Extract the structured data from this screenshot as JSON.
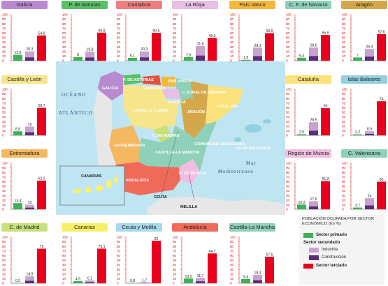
{
  "chart_data": {
    "type": "bar",
    "yaxis": {
      "ticks": [
        "100",
        "90",
        "80",
        "70",
        "60",
        "50",
        "40",
        "30",
        "20",
        "10",
        "0"
      ],
      "ylim": [
        0,
        100
      ]
    },
    "series": [
      {
        "name": "Sector primario",
        "color": "#3fb05a"
      },
      {
        "name": "Industria",
        "color": "#c9a3cf"
      },
      {
        "name": "Construcción",
        "color": "#5b2d7a"
      },
      {
        "name": "Sector terciario",
        "color": "#e8001c"
      }
    ],
    "panels": [
      {
        "region": "Galicia",
        "title_color": "#b98ad0",
        "values": [
          12.8,
          20.3,
          54.8
        ],
        "labels": [
          "12,8",
          "20,3",
          "54,8"
        ]
      },
      {
        "region": "P. de Asturias",
        "title_color": "#5bbf6a",
        "values": [
          8,
          19.8,
          60.9
        ],
        "labels": [
          "8",
          "19,8",
          "60,9"
        ]
      },
      {
        "region": "Cantabria",
        "title_color": "#f07e7e",
        "values": [
          6.1,
          20.3,
          60.5
        ],
        "labels": [
          "6,1",
          "20,3",
          "60,5"
        ]
      },
      {
        "region": "La Rioja",
        "title_color": "#e8bde6",
        "values": [
          7.9,
          31.8,
          49.6
        ],
        "labels": [
          "7,9",
          "31,8",
          "49,6"
        ]
      },
      {
        "region": "País Vasco",
        "title_color": "#f5b83a",
        "values": [
          1.9,
          28.3,
          59.9
        ],
        "labels": [
          "1,9",
          "28,3",
          "59,9"
        ]
      },
      {
        "region": "C. F. de Navarra",
        "title_color": "#8fd0b8",
        "values": [
          6.4,
          28.6,
          55.9
        ],
        "labels": [
          "6,4",
          "28,6",
          "55,9"
        ]
      },
      {
        "region": "Aragón",
        "title_color": "#d4a84a",
        "values": [
          7,
          25.4,
          57.6
        ],
        "labels": [
          "7",
          "25,4",
          "57,6"
        ]
      },
      {
        "region": "Castilla y León",
        "title_color": "#f6e58a",
        "values": [
          8.8,
          19,
          59.7
        ],
        "labels": [
          "8,8",
          "19",
          "59,7"
        ]
      },
      {
        "region": "Cataluña",
        "title_color": "#fbe27a",
        "values": [
          2.5,
          28.5,
          59
        ],
        "labels": [
          "2,5",
          "28,5",
          "59"
        ]
      },
      {
        "region": "Islas Baleares",
        "title_color": "#92cfe0",
        "values": [
          2.2,
          8.9,
          74
        ],
        "labels": [
          "2,2",
          "8,9",
          "74"
        ]
      },
      {
        "region": "Extremadura",
        "title_color": "#f4b860",
        "values": [
          13.4,
          10,
          62.2
        ],
        "labels": [
          "13,4",
          "10",
          "62,2"
        ]
      },
      {
        "region": "Región de Murcia",
        "title_color": "#f2bde0",
        "values": [
          10.2,
          17.6,
          61.3
        ],
        "labels": [
          "10,2",
          "17,6",
          "61,3"
        ]
      },
      {
        "region": "C. Valenciana",
        "title_color": "#8fd0b8",
        "values": [
          3.7,
          24,
          60
        ],
        "labels": [
          "3,7",
          "24",
          "60"
        ]
      },
      {
        "region": "C. de Madrid",
        "title_color": "#c6e07a",
        "values": [
          0.5,
          14.9,
          75
        ],
        "labels": [
          "0,5",
          "14,9",
          "75"
        ]
      },
      {
        "region": "Canarias",
        "title_color": "#f9f06a",
        "values": [
          4.5,
          6.1,
          75.1
        ],
        "labels": [
          "4,5",
          "6,1",
          "75,1"
        ]
      },
      {
        "region": "Ceuta y Melilla",
        "title_color": "#a8d8ec",
        "values": [
          0.8,
          1.7,
          92
        ],
        "labels": [
          "0,8",
          "1,7",
          "92"
        ]
      },
      {
        "region": "Andalucía",
        "title_color": "#f06a5a",
        "values": [
          10.2,
          11.7,
          64.7
        ],
        "labels": [
          "10,2",
          "11,7",
          "64,7"
        ]
      },
      {
        "region": "Castilla-La Mancha",
        "title_color": "#8fd0b8",
        "values": [
          9.4,
          18.3,
          57.5
        ],
        "labels": [
          "9,4",
          "18,3",
          "57,5"
        ]
      }
    ]
  },
  "map": {
    "regions": [
      "GALICIA",
      "P. DE ASTURIAS",
      "CANTABRIA",
      "PAÍS VASCO",
      "C. FORAL DE NAVARRA",
      "LA RIOJA",
      "CASTILLA Y LEÓN",
      "ARAGÓN",
      "CATALUÑA",
      "C. DE MADRID",
      "EXTREMADURA",
      "CASTILLA-LA MANCHA",
      "COMUNIDAD VALENCIANA",
      "ISLAS BALEARES",
      "R. DE MURCIA",
      "ANDALUCÍA",
      "CANARIAS",
      "CEUTA",
      "MELILLA"
    ],
    "seas": [
      "OCÉANO",
      "ATLÁNTICO",
      "Mar",
      "Mediterráneo"
    ]
  },
  "legend": {
    "title": "POBLACIÓN OCUPADA POR SECTOR ECONÓMICO (En %)",
    "primario": "Sector primario",
    "secundario": "Sector secundario",
    "industria": "Industria",
    "construccion": "Construcción",
    "terciario": "Sector terciario",
    "colors": {
      "primario": "#3fb05a",
      "industria": "#c9a3cf",
      "construccion": "#5b2d7a",
      "terciario": "#e8001c"
    }
  }
}
